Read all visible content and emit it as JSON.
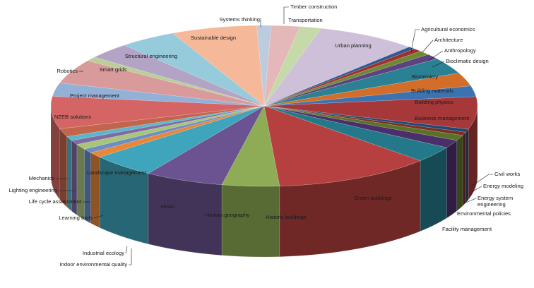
{
  "chart_data": {
    "type": "pie",
    "style": "3d-exploded-edge",
    "title": "",
    "legend": "none",
    "categories": [
      "Systems thinking",
      "Timber construction",
      "Transportation",
      "Urban planning",
      "Agricultural economics",
      "Architecture",
      "Anthropology",
      "Bioclimatic design",
      "Biomimicry",
      "Building materials",
      "Building physics",
      "Business management",
      "Civil works",
      "Energy modeling",
      "Energy system engineering",
      "Environmental policies",
      "Facility management",
      "Green buildings",
      "Historic buildings",
      "Human geography",
      "HVAC",
      "Indoor environmental quality",
      "Industrial ecology",
      "Learning tools",
      "Life cycle assessment",
      "Lighting engineering",
      "Mechanics",
      "Landscape management",
      "NZEB solutions",
      "Project management",
      "Robotics",
      "Smart grids",
      "Structural engineering",
      "Sustainable design"
    ],
    "values": [
      1.0,
      2.0,
      1.5,
      7.0,
      0.5,
      0.6,
      0.8,
      1.0,
      3.0,
      2.5,
      2.0,
      6.0,
      0.6,
      0.6,
      1.0,
      1.5,
      3.0,
      11.0,
      4.0,
      5.5,
      4.5,
      1.0,
      0.8,
      1.0,
      0.8,
      0.8,
      1.5,
      6.0,
      2.5,
      4.5,
      0.8,
      3.0,
      4.0,
      6.0
    ],
    "colors": [
      "#bccbde",
      "#e4b8b8",
      "#c6d9a8",
      "#cdc0d8",
      "#2e5b8e",
      "#a02f2e",
      "#6d8a33",
      "#5e4280",
      "#2a8193",
      "#d26d2a",
      "#3b73b0",
      "#a6383a",
      "#1f4873",
      "#7a2c28",
      "#597225",
      "#4b2f6b",
      "#23798a",
      "#b5403f",
      "#8eac56",
      "#6b5290",
      "#3fa5bc",
      "#e8873a",
      "#6b8ec5",
      "#a9c57a",
      "#7f6aa6",
      "#5cb5c9",
      "#c2654a",
      "#d56565",
      "#93b0d6",
      "#d89a9a",
      "#b9cf96",
      "#b3a4c6",
      "#95cbdb",
      "#f5b999"
    ],
    "label_texts": {
      "Energy system engineering": [
        "Energy system",
        "engineering"
      ]
    }
  }
}
